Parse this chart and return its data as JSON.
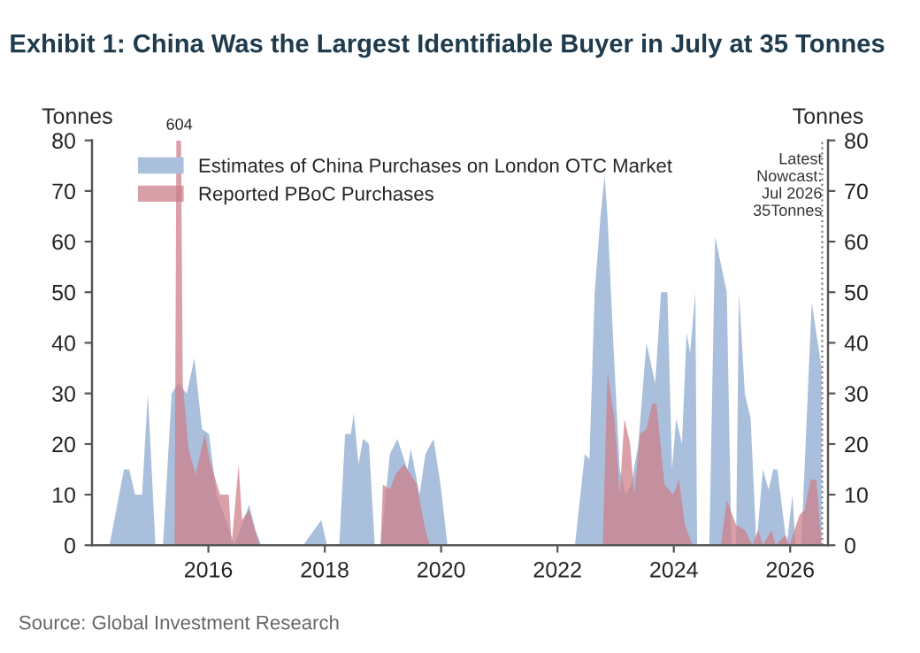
{
  "chart_data": {
    "type": "area",
    "title": "Exhibit 1: China Was the Largest Identifiable Buyer in July at 35 Tonnes",
    "ylabel": "Tonnes",
    "y2label": "Tonnes",
    "xlim": [
      2014.0,
      2026.65
    ],
    "xticks": [
      2016,
      2018,
      2020,
      2022,
      2024,
      2026
    ],
    "ylim": [
      0,
      80
    ],
    "yticks": [
      0,
      10,
      20,
      30,
      40,
      50,
      60,
      70,
      80
    ],
    "y2lim": [
      0,
      80
    ],
    "y2ticks": [
      0,
      10,
      20,
      30,
      40,
      50,
      60,
      70,
      80
    ],
    "grid": false,
    "legend": "top left",
    "ref_lines": [
      {
        "axis": "x",
        "value": 2026.55,
        "label": "Latest\nNowcast:\nJul 2026\n35Tonnes",
        "color": "#808080",
        "line_style": "dotted"
      }
    ],
    "annotations": [
      {
        "text": "604",
        "x": 2015.5,
        "y": 80
      },
      "Source: Global Investment Research"
    ],
    "series": [
      {
        "name": "Estimates of China Purchases on London OTC Market",
        "color": "#a9bfdc",
        "x": [
          2014.3,
          2014.55,
          2014.64,
          2014.74,
          2014.86,
          2014.96,
          2015.09,
          2015.22,
          2015.37,
          2015.48,
          2015.63,
          2015.76,
          2015.89,
          2016.01,
          2016.14,
          2016.3,
          2016.45,
          2016.7,
          2016.81,
          2016.91,
          2017.63,
          2017.94,
          2018.04,
          2018.25,
          2018.35,
          2018.45,
          2018.5,
          2018.58,
          2018.66,
          2018.76,
          2018.86,
          2018.96,
          2019.12,
          2019.25,
          2019.42,
          2019.48,
          2019.63,
          2019.73,
          2019.87,
          2019.99,
          2020.11,
          2022.3,
          2022.47,
          2022.55,
          2022.64,
          2022.74,
          2022.81,
          2022.86,
          2022.96,
          2023.07,
          2023.17,
          2023.27,
          2023.39,
          2023.53,
          2023.68,
          2023.78,
          2023.89,
          2023.97,
          2024.04,
          2024.14,
          2024.22,
          2024.28,
          2024.37,
          2024.4,
          2024.61,
          2024.71,
          2024.91,
          2024.99,
          2025.07,
          2025.12,
          2025.22,
          2025.32,
          2025.42,
          2025.53,
          2025.63,
          2025.71,
          2025.78,
          2025.94,
          2026.04,
          2026.09,
          2026.19,
          2026.37,
          2026.54
        ],
        "values": [
          0,
          15,
          15,
          10,
          10,
          30,
          0,
          0,
          30,
          32,
          30,
          37,
          23,
          22,
          10,
          5,
          0,
          8,
          3,
          0,
          0,
          5,
          0,
          0,
          22,
          22,
          26,
          16,
          21,
          20,
          0,
          0,
          18,
          21,
          15,
          19,
          10,
          18,
          21,
          12,
          0,
          0,
          18,
          17,
          50,
          65,
          73,
          65,
          40,
          15,
          10,
          12,
          20,
          40,
          32,
          50,
          50,
          15,
          25,
          20,
          42,
          38,
          50,
          0,
          0,
          61,
          50,
          0,
          0,
          50,
          30,
          25,
          0,
          15,
          11,
          15,
          15,
          0,
          10,
          0,
          0,
          48,
          35
        ]
      },
      {
        "name": "Reported PBoC Purchases",
        "color": "#cd7f8a",
        "x": [
          2015.42,
          2015.45,
          2015.53,
          2015.56,
          2015.66,
          2015.78,
          2015.94,
          2016.02,
          2016.2,
          2016.35,
          2016.4,
          2016.52,
          2016.58,
          2016.7,
          2016.8,
          2016.88,
          2018.96,
          2019.0,
          2019.12,
          2019.22,
          2019.36,
          2019.48,
          2019.58,
          2019.73,
          2019.81,
          2022.78,
          2022.86,
          2022.98,
          2023.07,
          2023.15,
          2023.25,
          2023.32,
          2023.42,
          2023.53,
          2023.63,
          2023.7,
          2023.84,
          2023.99,
          2024.09,
          2024.19,
          2024.32,
          2024.81,
          2024.91,
          2025.07,
          2025.22,
          2025.35,
          2025.45,
          2025.53,
          2025.68,
          2025.75,
          2025.92,
          2025.99,
          2026.16,
          2026.25,
          2026.35,
          2026.45,
          2026.54
        ],
        "values": [
          0,
          80,
          80,
          32,
          19,
          14,
          22,
          17,
          10,
          10,
          0,
          16,
          5,
          7,
          3,
          0,
          0,
          12,
          11,
          14,
          16,
          14,
          12,
          3,
          0,
          0,
          34,
          25,
          10,
          25,
          20,
          10,
          22,
          23,
          28,
          28,
          12,
          10,
          13,
          4,
          0,
          0,
          9,
          4,
          3,
          0,
          3,
          0,
          3,
          0,
          2,
          0,
          6,
          7,
          13,
          13,
          0
        ]
      }
    ]
  }
}
